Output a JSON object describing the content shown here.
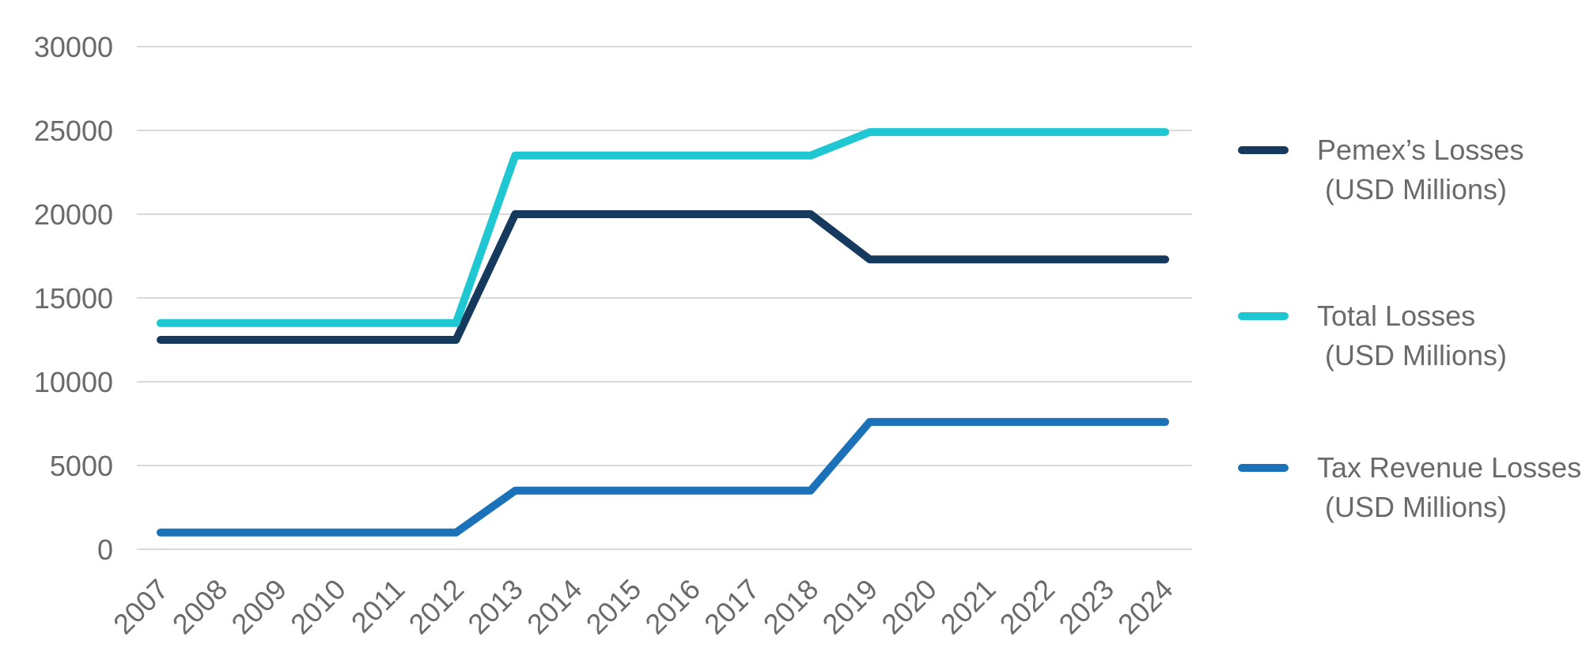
{
  "chart_data": {
    "type": "line",
    "title": "",
    "xlabel": "",
    "ylabel": "",
    "x": [
      "2007",
      "2008",
      "2009",
      "2010",
      "2011",
      "2012",
      "2013",
      "2014",
      "2015",
      "2016",
      "2017",
      "2018",
      "2019",
      "2020",
      "2021",
      "2022",
      "2023",
      "2024"
    ],
    "series": [
      {
        "name": "Pemex’s Losses (USD Millions)",
        "label": "Pemex’s Losses",
        "sublabel": "(USD Millions)",
        "color": "#16395E",
        "values": [
          12500,
          12500,
          12500,
          12500,
          12500,
          12500,
          20000,
          20000,
          20000,
          20000,
          20000,
          20000,
          17300,
          17300,
          17300,
          17300,
          17300,
          17300
        ]
      },
      {
        "name": "Total Losses (USD Millions)",
        "label": "Total Losses",
        "sublabel": "(USD Millions)",
        "color": "#1EC7D1",
        "values": [
          13500,
          13500,
          13500,
          13500,
          13500,
          13500,
          23500,
          23500,
          23500,
          23500,
          23500,
          23500,
          24900,
          24900,
          24900,
          24900,
          24900,
          24900
        ]
      },
      {
        "name": "Tax Revenue Losses (USD Millions)",
        "label": "Tax Revenue Losses",
        "sublabel": "(USD Millions)",
        "color": "#1B72B8",
        "values": [
          1000,
          1000,
          1000,
          1000,
          1000,
          1000,
          3500,
          3500,
          3500,
          3500,
          3500,
          3500,
          7600,
          7600,
          7600,
          7600,
          7600,
          7600
        ]
      }
    ],
    "y_axis": {
      "min": 0,
      "max": 30000,
      "step": 5000,
      "tick_labels": [
        "0",
        "5000",
        "10000",
        "15000",
        "20000",
        "25000",
        "30000"
      ]
    },
    "ylim": [
      0,
      30000
    ],
    "grid": "horizontal",
    "legend_position": "right",
    "axis_text_color": "#6A6A6A",
    "gridline_color": "#D9D9D9"
  }
}
